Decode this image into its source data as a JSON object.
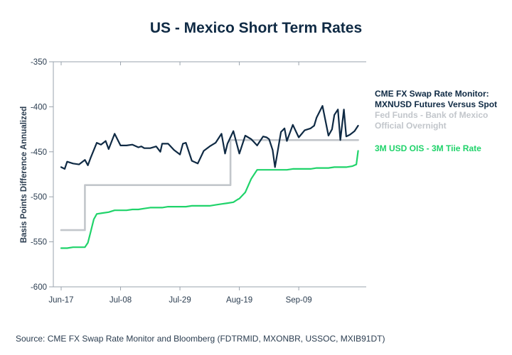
{
  "chart_data": {
    "type": "line",
    "title": "US - Mexico Short Term Rates",
    "ylabel": "Basis Points Difference Annualized",
    "xlabel": "",
    "ylim": [
      -600,
      -350
    ],
    "yticks": [
      -350,
      -400,
      -450,
      -500,
      -550,
      -600
    ],
    "xlim": [
      0,
      51
    ],
    "xtick_positions": [
      0,
      10,
      20,
      30,
      40
    ],
    "xtick_labels": [
      "Jun-17",
      "Jul-08",
      "Jul-29",
      "Aug-19",
      "Sep-09"
    ],
    "grid": false,
    "legend_position": "right",
    "source": "Source: CME FX Swap Rate Monitor and Bloomberg (FDTRMID, MXONBR, USSOC, MXIB91DT)",
    "series": [
      {
        "name": "CME FX Swap Rate Monitor: MXNUSD Futures Versus Spot",
        "legend_lines": [
          "CME FX Swap Rate Monitor:",
          "MXNUSD Futures Versus Spot"
        ],
        "color": "#0f2a44",
        "x": [
          0,
          0.6,
          1,
          2,
          3,
          4,
          4.5,
          5,
          6,
          6.7,
          7.5,
          8,
          9,
          10,
          11,
          12,
          13,
          13.5,
          14,
          15,
          16,
          16.7,
          17,
          18,
          19,
          20,
          20.5,
          21,
          22,
          23,
          24,
          25,
          26,
          27,
          27.6,
          28,
          29,
          30,
          31,
          32,
          33,
          34,
          34.6,
          35,
          35.6,
          36,
          37,
          37.6,
          38,
          39,
          40,
          41,
          42,
          42.6,
          43,
          44,
          45,
          45.6,
          46,
          46.6,
          47,
          47.6,
          48,
          48.6,
          49,
          49.4,
          50
        ],
        "values": [
          -467,
          -469,
          -461,
          -463,
          -464,
          -459,
          -465,
          -456,
          -440,
          -442,
          -438,
          -447,
          -430,
          -443,
          -443,
          -442,
          -445,
          -444,
          -446,
          -446,
          -444,
          -450,
          -441,
          -441,
          -448,
          -453,
          -441,
          -440,
          -460,
          -463,
          -449,
          -444,
          -440,
          -430,
          -452,
          -441,
          -427,
          -452,
          -432,
          -436,
          -443,
          -433,
          -434,
          -436,
          -448,
          -467,
          -428,
          -424,
          -438,
          -420,
          -434,
          -426,
          -424,
          -421,
          -412,
          -399,
          -432,
          -425,
          -409,
          -403,
          -437,
          -403,
          -433,
          -431,
          -429,
          -427,
          -421
        ]
      },
      {
        "name": "Fed Funds - Bank of Mexico Official Overnight",
        "legend_lines": [
          "Fed Funds - Bank of Mexico",
          "Official Overnight"
        ],
        "color": "#c2c6cb",
        "x": [
          0,
          4,
          4,
          28.5,
          28.5,
          50
        ],
        "values": [
          -537,
          -537,
          -487,
          -487,
          -437,
          -437
        ]
      },
      {
        "name": "3M USD OIS - 3M Tiie Rate",
        "legend_lines": [
          "3M USD OIS - 3M Tiie Rate"
        ],
        "color": "#1fd36a",
        "x": [
          0,
          1,
          2,
          3,
          4,
          4.5,
          5,
          5.5,
          6,
          7,
          8,
          9,
          10,
          11,
          12,
          13,
          14,
          15,
          16,
          17,
          18,
          19,
          20,
          21,
          22,
          23,
          24,
          25,
          26,
          27,
          28,
          29,
          29.7,
          30,
          31,
          32,
          33,
          34,
          35,
          36,
          37,
          38,
          39,
          40,
          41,
          42,
          43,
          44,
          45,
          46,
          47,
          48,
          49,
          49.7,
          50
        ],
        "values": [
          -557,
          -557,
          -556,
          -556,
          -556,
          -551,
          -538,
          -525,
          -519,
          -518,
          -517,
          -515,
          -515,
          -515,
          -514,
          -514,
          -513,
          -512,
          -512,
          -512,
          -511,
          -511,
          -511,
          -511,
          -510,
          -510,
          -510,
          -510,
          -509,
          -508,
          -507,
          -506,
          -503,
          -502,
          -495,
          -480,
          -470,
          -470,
          -470,
          -470,
          -470,
          -470,
          -469,
          -469,
          -469,
          -469,
          -468,
          -468,
          -468,
          -467,
          -467,
          -467,
          -466,
          -464,
          -449
        ]
      }
    ]
  }
}
